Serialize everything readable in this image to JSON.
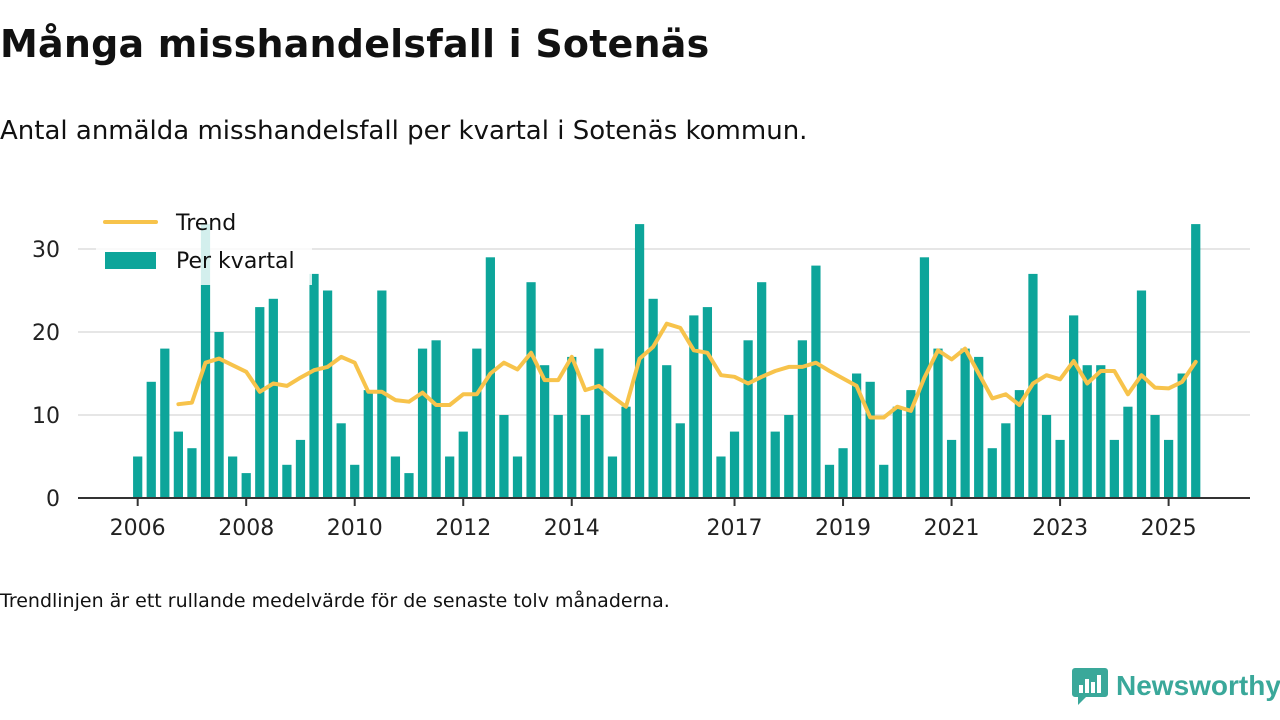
{
  "title": "Många misshandelsfall i Sotenäs",
  "subtitle": "Antal anmälda misshandelsfall per kvartal i Sotenäs kommun.",
  "note": "Trendlinjen är ett rullande medelvärde för de senaste tolv månaderna.",
  "brand": "Newsworthy",
  "colors": {
    "bar": "#0da59a",
    "trend": "#f7c34b",
    "grid": "#dddddd",
    "axis": "#333333",
    "brand": "#3aa89a"
  },
  "chart_data": {
    "type": "bar",
    "title": "Många misshandelsfall i Sotenäs",
    "ylim": [
      0,
      33
    ],
    "y_ticks": [
      0,
      10,
      20,
      30
    ],
    "x_tick_labels": [
      "2006",
      "2008",
      "2010",
      "2012",
      "2014",
      "2017",
      "2019",
      "2021",
      "2023",
      "2025"
    ],
    "x_tick_positions": [
      2006.0,
      2008.0,
      2010.0,
      2012.0,
      2014.0,
      2017.0,
      2019.0,
      2021.0,
      2023.0,
      2025.0
    ],
    "x_range": [
      2004.9,
      2026.5
    ],
    "grid": true,
    "legend": {
      "position": "top-left",
      "items": [
        "Trend",
        "Per kvartal"
      ]
    },
    "series": [
      {
        "name": "Per kvartal",
        "type": "bar",
        "x_start": 2006.0,
        "step": 0.25,
        "values": [
          5,
          14,
          18,
          8,
          6,
          33,
          20,
          5,
          3,
          23,
          24,
          4,
          7,
          27,
          25,
          9,
          4,
          13,
          25,
          5,
          3,
          18,
          19,
          5,
          8,
          18,
          29,
          10,
          5,
          26,
          16,
          10,
          17,
          10,
          18,
          5,
          11,
          33,
          24,
          16,
          9,
          22,
          23,
          5,
          8,
          19,
          26,
          8,
          10,
          19,
          28,
          4,
          6,
          15,
          14,
          4,
          11,
          13,
          29,
          18,
          7,
          18,
          17,
          6,
          9,
          13,
          27,
          10,
          7,
          22,
          16,
          16,
          7,
          11,
          25,
          10,
          7,
          15,
          33
        ]
      },
      {
        "name": "Trend",
        "type": "line",
        "x_start": 2006.75,
        "step": 0.25,
        "values": [
          11.3,
          11.5,
          16.3,
          16.8,
          16.0,
          15.2,
          12.8,
          13.8,
          13.5,
          14.5,
          15.4,
          15.8,
          17.0,
          16.3,
          12.8,
          12.8,
          11.8,
          11.6,
          12.7,
          11.2,
          11.2,
          12.5,
          12.5,
          15.0,
          16.3,
          15.5,
          17.5,
          14.2,
          14.2,
          17.0,
          13.0,
          13.5,
          12.2,
          11.0,
          16.8,
          18.2,
          21.0,
          20.5,
          17.8,
          17.5,
          14.8,
          14.6,
          13.8,
          14.6,
          15.3,
          15.8,
          15.8,
          16.3,
          15.3,
          14.4,
          13.5,
          9.7,
          9.7,
          11.0,
          10.5,
          14.5,
          17.8,
          16.7,
          18.0,
          15.0,
          12.0,
          12.5,
          11.2,
          13.8,
          14.8,
          14.3,
          16.5,
          13.8,
          15.3,
          15.3,
          12.5,
          14.8,
          13.3,
          13.2,
          14.0,
          16.4
        ]
      }
    ]
  }
}
